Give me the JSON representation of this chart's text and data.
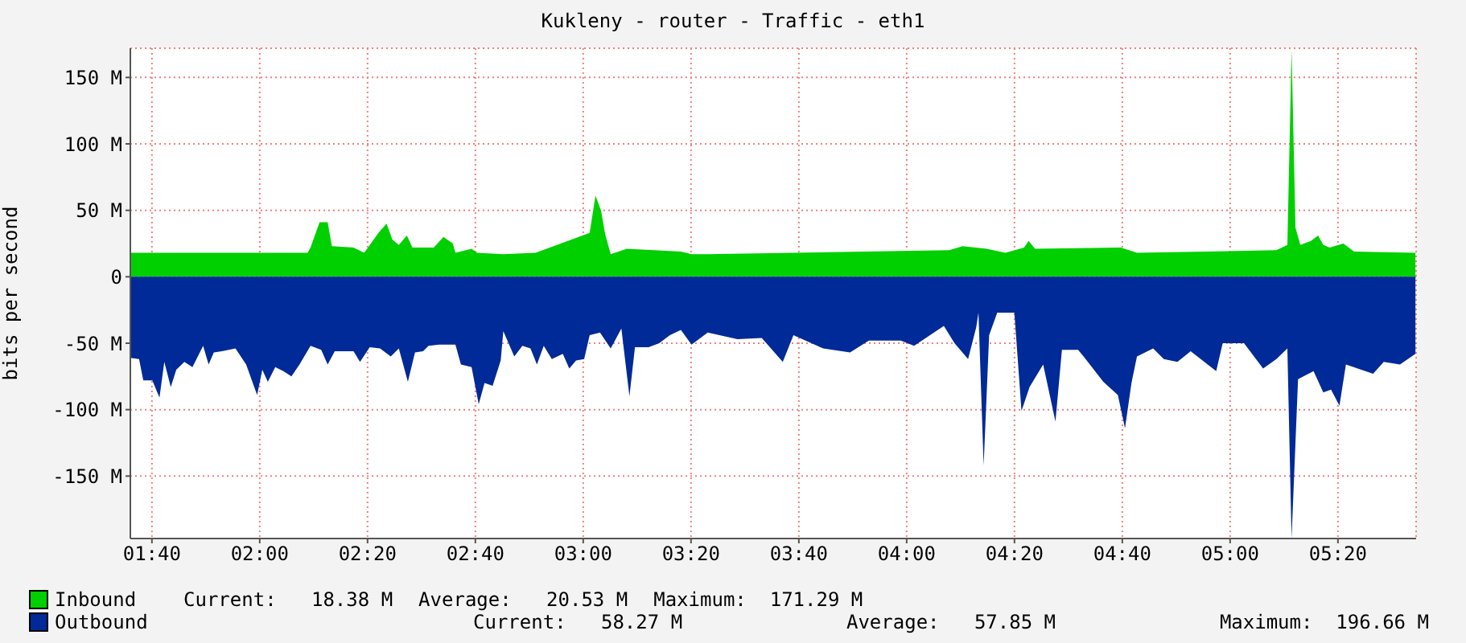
{
  "chart_data": {
    "type": "area",
    "title": "Kukleny - router - Traffic - eth1",
    "ylabel": "bits per second",
    "xlim": [
      1.6,
      5.575
    ],
    "xticks": [
      {
        "value": 1.6667,
        "label": "01:40"
      },
      {
        "value": 2,
        "label": "02:00"
      },
      {
        "value": 2.3333,
        "label": "02:20"
      },
      {
        "value": 2.6667,
        "label": "02:40"
      },
      {
        "value": 3,
        "label": "03:00"
      },
      {
        "value": 3.3333,
        "label": "03:20"
      },
      {
        "value": 3.6667,
        "label": "03:40"
      },
      {
        "value": 4,
        "label": "04:00"
      },
      {
        "value": 4.3333,
        "label": "04:20"
      },
      {
        "value": 4.6667,
        "label": "04:40"
      },
      {
        "value": 5,
        "label": "05:00"
      },
      {
        "value": 5.3333,
        "label": "05:20"
      }
    ],
    "ylim": [
      -197,
      172
    ],
    "yticks": [
      {
        "value": -150,
        "label": "-150 M"
      },
      {
        "value": -100,
        "label": "-100 M"
      },
      {
        "value": -50,
        "label": "-50 M"
      },
      0,
      {
        "value": 50,
        "label": "50 M"
      },
      {
        "value": 100,
        "label": "100 M"
      },
      {
        "value": 150,
        "label": "150 M"
      }
    ],
    "grid": true,
    "legend": "bottom left",
    "series": [
      {
        "name": "Inbound",
        "color": "#00cf00",
        "x": [
          1.6,
          2.148,
          2.157,
          2.185,
          2.21,
          2.223,
          2.29,
          2.323,
          2.367,
          2.392,
          2.41,
          2.43,
          2.455,
          2.472,
          2.538,
          2.568,
          2.597,
          2.605,
          2.655,
          2.672,
          2.753,
          2.853,
          3.02,
          3.038,
          3.055,
          3.068,
          3.085,
          3.135,
          3.302,
          3.335,
          3.385,
          4.132,
          4.173,
          4.247,
          4.305,
          4.363,
          4.377,
          4.397,
          4.662,
          4.712,
          5.143,
          5.177,
          5.19,
          5.202,
          5.217,
          5.25,
          5.272,
          5.288,
          5.308,
          5.35,
          5.383,
          5.573
        ],
        "values": [
          18,
          18,
          22,
          41,
          41,
          23,
          22,
          18,
          33,
          40,
          28,
          24,
          31,
          22,
          22,
          30,
          25,
          18,
          21,
          18,
          17,
          18,
          33,
          61,
          50,
          32,
          17,
          21,
          19,
          17,
          17,
          20,
          23,
          21,
          18,
          22,
          27,
          21,
          22,
          18,
          20,
          24,
          171,
          37,
          24,
          27,
          31,
          24,
          22,
          25,
          19,
          18
        ]
      },
      {
        "name": "Outbound",
        "color": "#002a97",
        "x": [
          1.6,
          1.627,
          1.64,
          1.668,
          1.69,
          1.705,
          1.725,
          1.742,
          1.767,
          1.792,
          1.825,
          1.842,
          1.858,
          1.883,
          1.925,
          1.958,
          1.992,
          2.008,
          2.025,
          2.048,
          2.073,
          2.098,
          2.123,
          2.157,
          2.19,
          2.21,
          2.232,
          2.29,
          2.31,
          2.34,
          2.372,
          2.405,
          2.43,
          2.458,
          2.48,
          2.505,
          2.522,
          2.555,
          2.605,
          2.622,
          2.655,
          2.677,
          2.695,
          2.72,
          2.745,
          2.753,
          2.787,
          2.812,
          2.837,
          2.857,
          2.878,
          2.903,
          2.937,
          2.957,
          2.978,
          3.003,
          3.02,
          3.052,
          3.085,
          3.118,
          3.143,
          3.16,
          3.202,
          3.235,
          3.268,
          3.302,
          3.335,
          3.385,
          3.477,
          3.552,
          3.617,
          3.65,
          3.742,
          3.825,
          3.883,
          3.982,
          4.023,
          4.115,
          4.148,
          4.19,
          4.215,
          4.222,
          4.238,
          4.255,
          4.28,
          4.333,
          4.355,
          4.38,
          4.422,
          4.46,
          4.48,
          4.53,
          4.547,
          4.608,
          4.653,
          4.675,
          4.695,
          4.712,
          4.762,
          4.795,
          4.837,
          4.878,
          4.957,
          4.977,
          5.043,
          5.102,
          5.143,
          5.177,
          5.19,
          5.21,
          5.258,
          5.288,
          5.312,
          5.338,
          5.358,
          5.442,
          5.475,
          5.525,
          5.573
        ],
        "values": [
          -61,
          -62,
          -78,
          -78,
          -91,
          -64,
          -83,
          -70,
          -64,
          -68,
          -52,
          -66,
          -57,
          -56,
          -54,
          -66,
          -89,
          -70,
          -79,
          -68,
          -71,
          -75,
          -66,
          -52,
          -55,
          -66,
          -56,
          -56,
          -64,
          -53,
          -54,
          -60,
          -54,
          -79,
          -57,
          -56,
          -52,
          -51,
          -51,
          -66,
          -68,
          -96,
          -80,
          -82,
          -63,
          -41,
          -60,
          -52,
          -54,
          -66,
          -52,
          -62,
          -58,
          -69,
          -63,
          -62,
          -44,
          -42,
          -54,
          -39,
          -90,
          -53,
          -53,
          -50,
          -44,
          -40,
          -51,
          -42,
          -47,
          -46,
          -64,
          -44,
          -54,
          -57,
          -48,
          -48,
          -52,
          -37,
          -50,
          -62,
          -38,
          -27,
          -142,
          -44,
          -27,
          -27,
          -101,
          -83,
          -66,
          -109,
          -55,
          -55,
          -60,
          -79,
          -89,
          -114,
          -80,
          -60,
          -54,
          -62,
          -64,
          -56,
          -71,
          -50,
          -50,
          -69,
          -62,
          -54,
          -197,
          -77,
          -71,
          -87,
          -85,
          -97,
          -66,
          -73,
          -64,
          -66,
          -58
        ]
      }
    ],
    "annotations": [
      "Current:   18.38 M",
      "Average:   20.53 M",
      "Maximum:  171.29 M",
      "Current:   58.27 M",
      "Average:   57.85 M",
      "Maximum:  196.66 M"
    ]
  }
}
